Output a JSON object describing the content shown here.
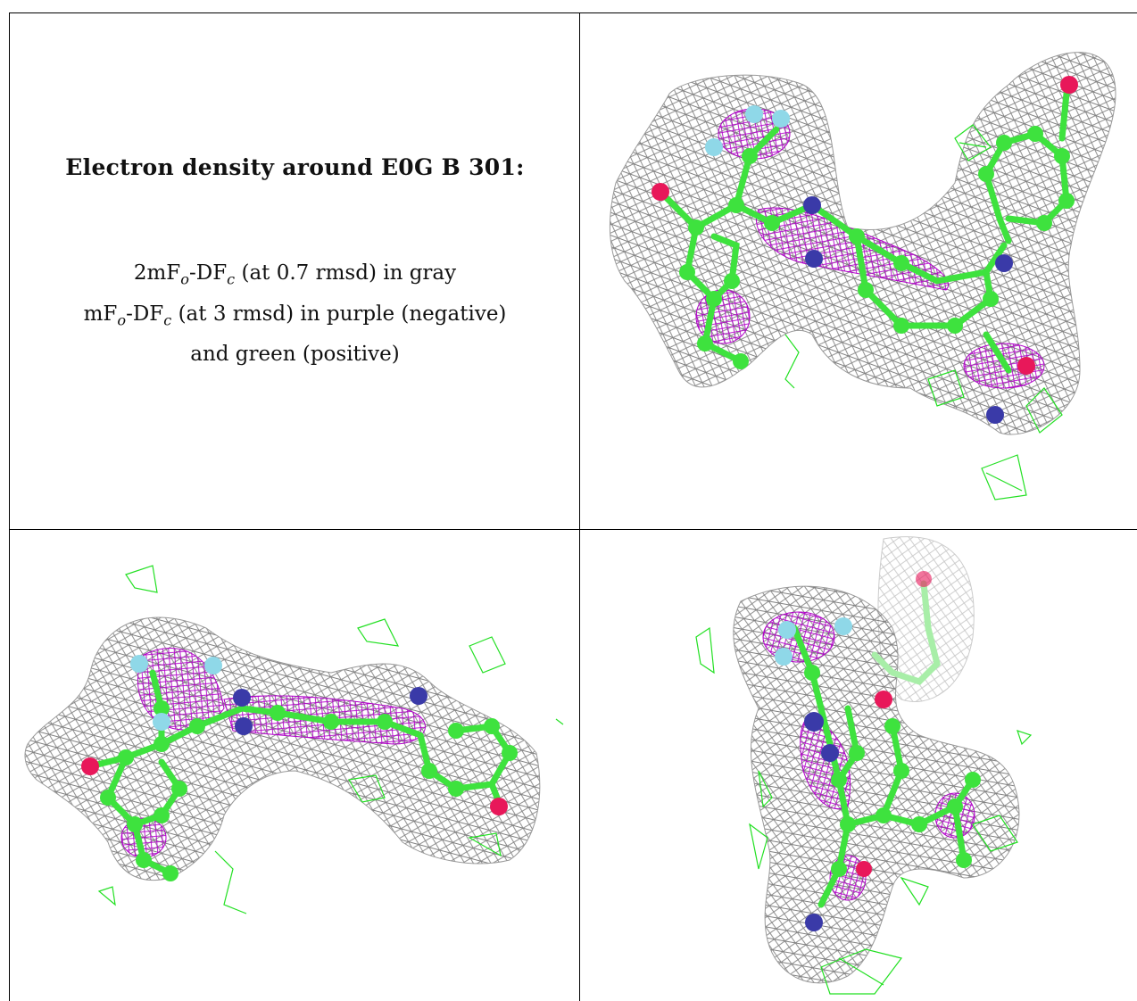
{
  "caption": {
    "title": "Electron density around E0G B 301:",
    "line1": "2mFo-DFc (at 0.7 rmsd) in gray",
    "line2": "mFo-DFc (at 3 rmsd) in purple (negative)",
    "line3": "and green (positive)"
  },
  "colors": {
    "mesh_2fofc": "#7f7f7f",
    "mesh_negative": "#b000c8",
    "mesh_positive": "#22e022",
    "carbon": "#3ee23e",
    "nitrogen": "#3a3aa8",
    "oxygen": "#e8185a",
    "fluorine": "#8fd8e8"
  }
}
